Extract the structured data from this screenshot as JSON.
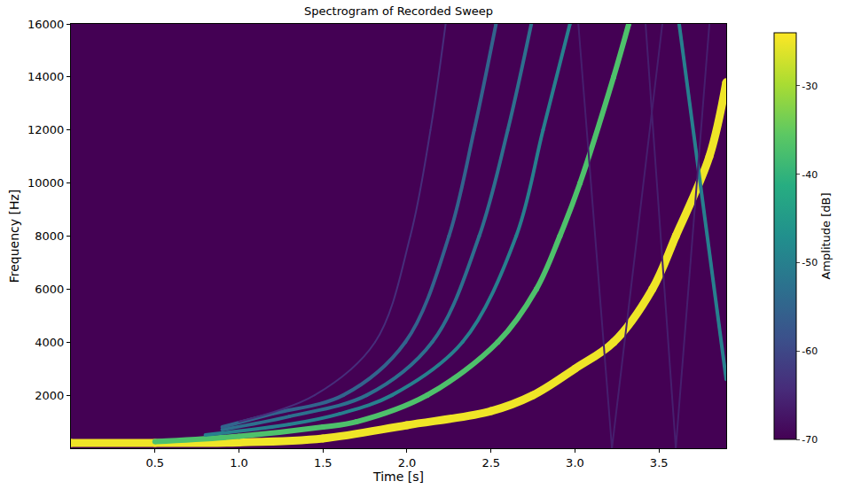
{
  "chart_data": {
    "type": "spectrogram",
    "title": "Spectrogram of Recorded Sweep",
    "x_label": "Time [s]",
    "y_label": "Frequency [Hz]",
    "colorbar_label": "Amplitude [dB]",
    "xlim": [
      0,
      3.9
    ],
    "ylim": [
      0,
      16000
    ],
    "xticks": [
      0.5,
      1.0,
      1.5,
      2.0,
      2.5,
      3.0,
      3.5
    ],
    "yticks": [
      2000,
      4000,
      6000,
      8000,
      10000,
      12000,
      14000,
      16000
    ],
    "clim": [
      -70,
      -24
    ],
    "cticks": [
      -30,
      -40,
      -50,
      -60,
      -70
    ],
    "grid": false,
    "series": [
      {
        "x": [
          0,
          0.5,
          1.0,
          1.5,
          2.0,
          2.5,
          2.75,
          3.0,
          3.23,
          3.46,
          3.6,
          3.8,
          3.9
        ],
        "values": [
          200,
          200,
          220,
          370,
          870,
          1400,
          2000,
          3000,
          4000,
          6000,
          8000,
          11000,
          13800
        ],
        "amplitude": -25
      },
      {
        "x": [
          0.5,
          1.0,
          1.5,
          1.7,
          2.12,
          2.54,
          2.77,
          2.91,
          3.03,
          3.23,
          3.32
        ],
        "values": [
          250,
          450,
          800,
          1000,
          2000,
          4000,
          6000,
          8000,
          10000,
          14000,
          16000
        ],
        "amplitude": -37
      },
      {
        "x": [
          0.8,
          1.3,
          1.6,
          1.91,
          2.33,
          2.65,
          2.81,
          2.97
        ],
        "values": [
          500,
          900,
          1300,
          2000,
          4000,
          8000,
          12000,
          16000
        ],
        "amplitude": -50
      },
      {
        "x": [
          0.9,
          1.3,
          1.76,
          2.15,
          2.43,
          2.6,
          2.74
        ],
        "values": [
          700,
          1200,
          2000,
          4000,
          8000,
          12000,
          16000
        ],
        "amplitude": -53
      },
      {
        "x": [
          0.9,
          1.2,
          1.62,
          1.99,
          2.25,
          2.4,
          2.53
        ],
        "values": [
          800,
          1300,
          2000,
          4000,
          8000,
          12000,
          16000
        ],
        "amplitude": -55
      },
      {
        "x": [
          1.0,
          1.45,
          1.81,
          2.02,
          2.14,
          2.23
        ],
        "values": [
          1000,
          2000,
          4000,
          8000,
          12000,
          16000
        ],
        "amplitude": -64
      },
      {
        "x": [
          3.62,
          3.9
        ],
        "values": [
          16000,
          2600
        ],
        "amplitude": -50,
        "line_style": "straight"
      },
      {
        "x": [
          3.02,
          3.22,
          3.52
        ],
        "values": [
          16000,
          0,
          16000
        ],
        "amplitude": -66,
        "line_style": "straight"
      },
      {
        "x": [
          3.42,
          3.6,
          3.8
        ],
        "values": [
          16000,
          0,
          16000
        ],
        "amplitude": -66,
        "line_style": "straight"
      }
    ]
  }
}
